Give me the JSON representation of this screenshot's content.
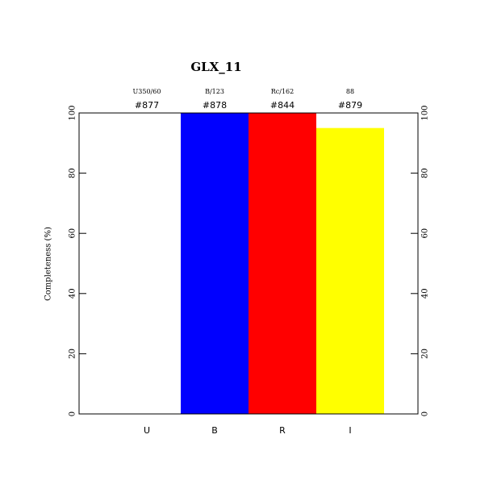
{
  "chart_data": {
    "type": "bar",
    "title": "GLX_11",
    "y_label": "Completeness (%)",
    "categories": [
      "U",
      "B",
      "R",
      "I"
    ],
    "filters": [
      "U350/60",
      "B/123",
      "Rc/162",
      "88"
    ],
    "ids": [
      "#877",
      "#878",
      "#844",
      "#879"
    ],
    "values": [
      0,
      100,
      100,
      95
    ],
    "colors": [
      "#ffffff",
      "#0000ff",
      "#ff0000",
      "#ffff00"
    ],
    "ylim": [
      0,
      100
    ],
    "yticks": [
      0,
      20,
      40,
      60,
      80,
      100
    ]
  }
}
